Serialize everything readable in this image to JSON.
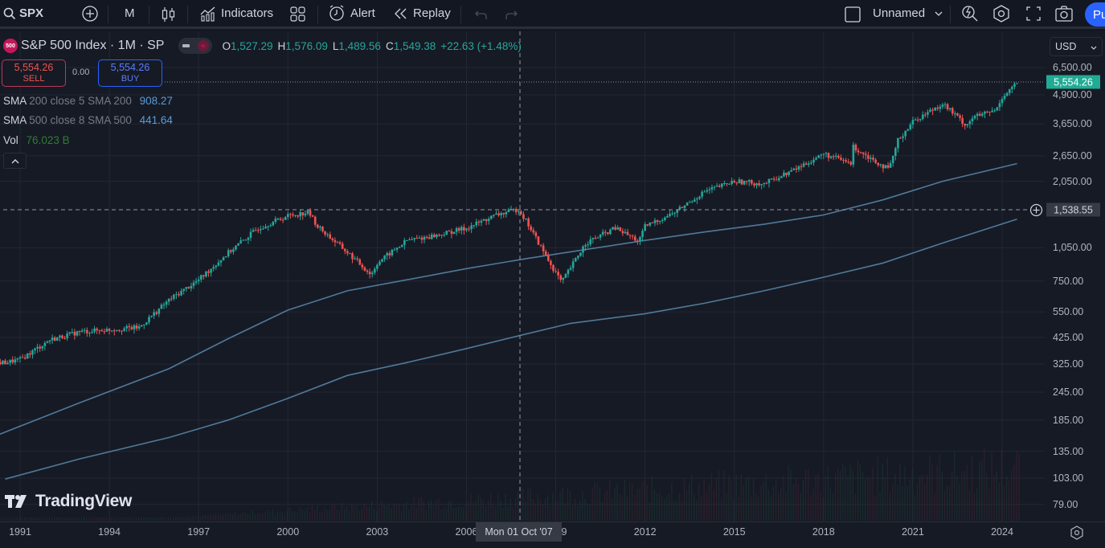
{
  "toolbar": {
    "symbol": "SPX",
    "interval": "M",
    "indicators_label": "Indicators",
    "alert_label": "Alert",
    "replay_label": "Replay",
    "layout_name": "Unnamed",
    "publish_label": "Pu"
  },
  "legend": {
    "badge": "500",
    "title": "S&P 500 Index · 1M · SP",
    "o_key": "O",
    "o_val": "1,527.29",
    "h_key": "H",
    "h_val": "1,576.09",
    "l_key": "L",
    "l_val": "1,489.56",
    "c_key": "C",
    "c_val": "1,549.38",
    "change": "+22.63 (+1.48%)"
  },
  "trade": {
    "sell_price": "5,554.26",
    "sell_label": "SELL",
    "spread": "0.00",
    "buy_price": "5,554.26",
    "buy_label": "BUY"
  },
  "indicators": [
    {
      "name": "SMA",
      "params": "200 close 5 SMA 200",
      "value": "908.27"
    },
    {
      "name": "SMA",
      "params": "500 close 8 SMA 500",
      "value": "441.64"
    },
    {
      "name": "Vol",
      "params": "",
      "value": "76.023 B"
    }
  ],
  "price_axis": {
    "currency": "USD",
    "ticks": [
      "6,500.00",
      "4,900.00",
      "3,650.00",
      "2,650.00",
      "2,050.00",
      "1,050.00",
      "750.00",
      "550.00",
      "425.00",
      "325.00",
      "245.00",
      "185.00",
      "135.00",
      "103.00",
      "79.00"
    ],
    "current_price": "5,554.26",
    "crosshair_price": "1,538.55"
  },
  "time_axis": {
    "ticks": [
      "1991",
      "1994",
      "1997",
      "2000",
      "2003",
      "2006",
      "2009",
      "2012",
      "2015",
      "2018",
      "2021",
      "2024"
    ],
    "crosshair_time": "Mon 01 Oct '07"
  },
  "watermark": "TradingView",
  "colors": {
    "up": "#26a69a",
    "down": "#ef5350",
    "sma": "#4f7a99",
    "background": "#161a25",
    "current_price_bg": "#22ab94",
    "accent": "#2962ff"
  },
  "chart_data": {
    "type": "candlestick",
    "title": "S&P 500 Index · 1M · SP",
    "scale": "log",
    "xlabel": "",
    "ylabel": "USD",
    "x_range": [
      "1990",
      "2024"
    ],
    "ylim": [
      79,
      6500
    ],
    "y_ticks": [
      6500,
      4900,
      3650,
      2650,
      2050,
      1050,
      750,
      550,
      425,
      325,
      245,
      185,
      135,
      103,
      79
    ],
    "x_ticks": [
      "1991",
      "1994",
      "1997",
      "2000",
      "2003",
      "2006",
      "2009",
      "2012",
      "2015",
      "2018",
      "2021",
      "2024"
    ],
    "series": [
      {
        "name": "SPX (approx. monthly close)",
        "x": [
          1990.5,
          1991,
          1992,
          1993,
          1994,
          1995,
          1996,
          1997,
          1998,
          1999,
          2000,
          2000.7,
          2001,
          2002,
          2002.8,
          2003,
          2004,
          2005,
          2006,
          2007,
          2007.75,
          2008,
          2008.8,
          2009.2,
          2010,
          2011,
          2011.8,
          2012,
          2013,
          2014,
          2015,
          2016,
          2017,
          2018,
          2018.95,
          2019,
          2020.2,
          2020.5,
          2021,
          2022,
          2022.8,
          2023,
          2023.8,
          2024,
          2024.5
        ],
        "values": [
          330,
          340,
          415,
          450,
          460,
          470,
          620,
          760,
          1000,
          1280,
          1450,
          1500,
          1300,
          1000,
          800,
          900,
          1130,
          1190,
          1280,
          1460,
          1549,
          1380,
          900,
          740,
          1100,
          1280,
          1120,
          1300,
          1500,
          1850,
          2050,
          2000,
          2300,
          2700,
          2450,
          2900,
          2300,
          3100,
          3750,
          4500,
          3600,
          3900,
          4200,
          4800,
          5554
        ]
      },
      {
        "name": "SMA 200 close",
        "last_value": 908.27,
        "x": [
          1990.3,
          1993,
          1996,
          1998,
          2000,
          2002,
          2004,
          2006,
          2008,
          2010,
          2012,
          2014,
          2016,
          2018,
          2020,
          2022,
          2024.5
        ],
        "values": [
          160,
          220,
          310,
          420,
          560,
          680,
          760,
          850,
          940,
          1030,
          1130,
          1230,
          1330,
          1460,
          1700,
          2050,
          2450
        ]
      },
      {
        "name": "SMA 500 close",
        "last_value": 441.64,
        "x": [
          1990.5,
          1993,
          1996,
          1998,
          2000,
          2002,
          2004,
          2006,
          2008,
          2009.5,
          2012,
          2014,
          2016,
          2018,
          2020,
          2022,
          2024.5
        ],
        "values": [
          102,
          125,
          155,
          185,
          230,
          290,
          330,
          380,
          440,
          490,
          540,
          600,
          680,
          780,
          900,
          1100,
          1400
        ]
      }
    ],
    "crosshair": {
      "x": "Mon 01 Oct '07",
      "y": 1538.55
    },
    "legend_position": "top-left"
  }
}
